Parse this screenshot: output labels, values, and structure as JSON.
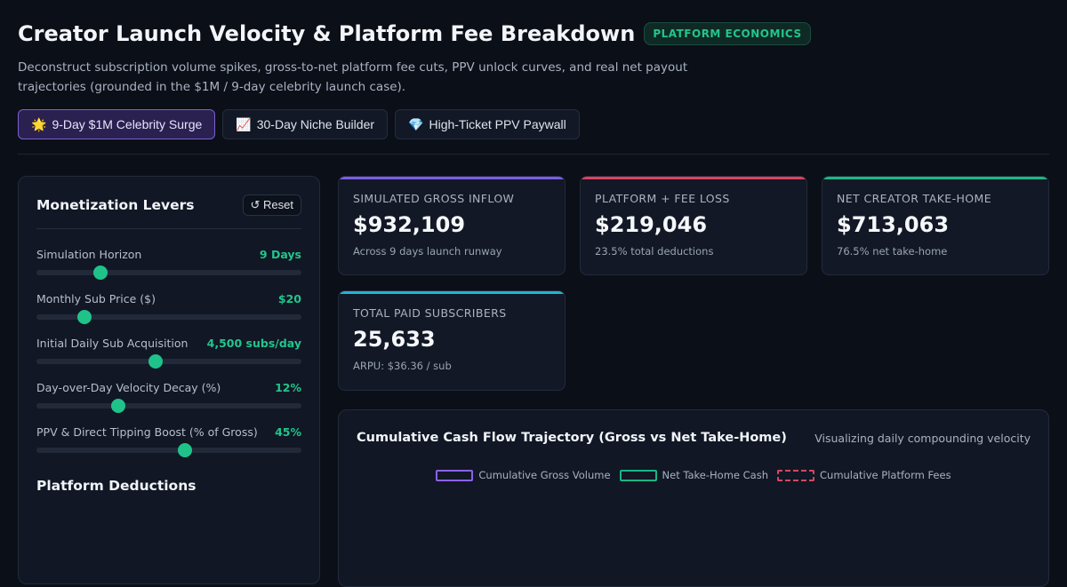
{
  "header": {
    "title": "Creator Launch Velocity & Platform Fee Breakdown",
    "badge": "PLATFORM ECONOMICS",
    "subtitle": "Deconstruct subscription volume spikes, gross-to-net platform fee cuts, PPV unlock curves, and real net payout trajectories (grounded in the $1M / 9-day celebrity launch case)."
  },
  "presets": [
    {
      "icon": "🌟",
      "label": "9-Day $1M Celebrity Surge",
      "active": true
    },
    {
      "icon": "📈",
      "label": "30-Day Niche Builder",
      "active": false
    },
    {
      "icon": "💎",
      "label": "High-Ticket PPV Paywall",
      "active": false
    }
  ],
  "levers": {
    "title": "Monetization Levers",
    "reset_label": "↺ Reset",
    "items": [
      {
        "label": "Simulation Horizon",
        "value": "9 Days",
        "level": 0.24
      },
      {
        "label": "Monthly Sub Price ($)",
        "value": "$20",
        "level": 0.18
      },
      {
        "label": "Initial Daily Sub Acquisition",
        "value": "4,500 subs/day",
        "level": 0.45
      },
      {
        "label": "Day-over-Day Velocity Decay (%)",
        "value": "12%",
        "level": 0.31
      },
      {
        "label": "PPV & Direct Tipping Boost (% of Gross)",
        "value": "45%",
        "level": 0.56
      }
    ],
    "deductions_title": "Platform Deductions"
  },
  "kpis": [
    {
      "label": "SIMULATED GROSS INFLOW",
      "value": "$932,109",
      "sub": "Across 9 days launch runway",
      "accent": "#7d5ce6"
    },
    {
      "label": "PLATFORM + FEE LOSS",
      "value": "$219,046",
      "sub": "23.5% total deductions",
      "accent": "#e0415f"
    },
    {
      "label": "NET CREATOR TAKE-HOME",
      "value": "$713,063",
      "sub": "76.5% net take-home",
      "accent": "#19b982"
    },
    {
      "label": "TOTAL PAID SUBSCRIBERS",
      "value": "25,633",
      "sub": "ARPU: $36.36 / sub",
      "accent": "#1fb5d3"
    }
  ],
  "chart": {
    "title": "Cumulative Cash Flow Trajectory (Gross vs Net Take-Home)",
    "note": "Visualizing daily compounding velocity",
    "legend": [
      {
        "label": "Cumulative Gross Volume",
        "color": "#8b62e8",
        "style": "solid"
      },
      {
        "label": "Net Take-Home Cash",
        "color": "#18b784",
        "style": "solid"
      },
      {
        "label": "Cumulative Platform Fees",
        "color": "#d8465f",
        "style": "dashed"
      }
    ]
  }
}
